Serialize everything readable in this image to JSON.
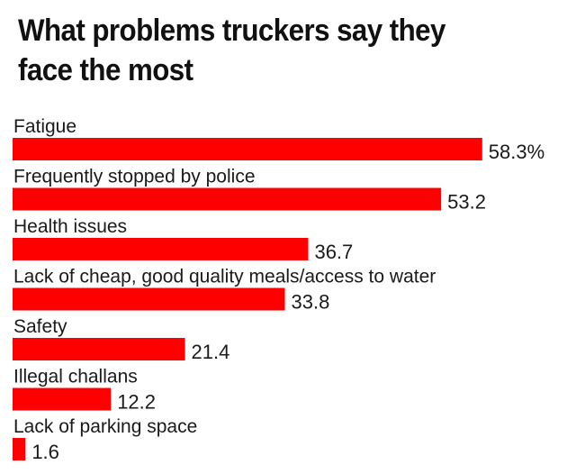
{
  "chart_data": {
    "type": "bar",
    "orientation": "horizontal",
    "title": "What problems truckers say they face the most",
    "categories": [
      "Fatigue",
      "Frequently stopped by police",
      "Health issues",
      "Lack of cheap, good quality meals/access to water",
      "Safety",
      "Illegal challans",
      "Lack of parking space"
    ],
    "values": [
      58.3,
      53.2,
      36.7,
      33.8,
      21.4,
      12.2,
      1.6
    ],
    "value_labels": [
      "58.3%",
      "53.2",
      "36.7",
      "33.8",
      "21.4",
      "12.2",
      "1.6"
    ],
    "unit": "%",
    "bar_color": "#ff0000",
    "grid": false,
    "legend": "none"
  }
}
